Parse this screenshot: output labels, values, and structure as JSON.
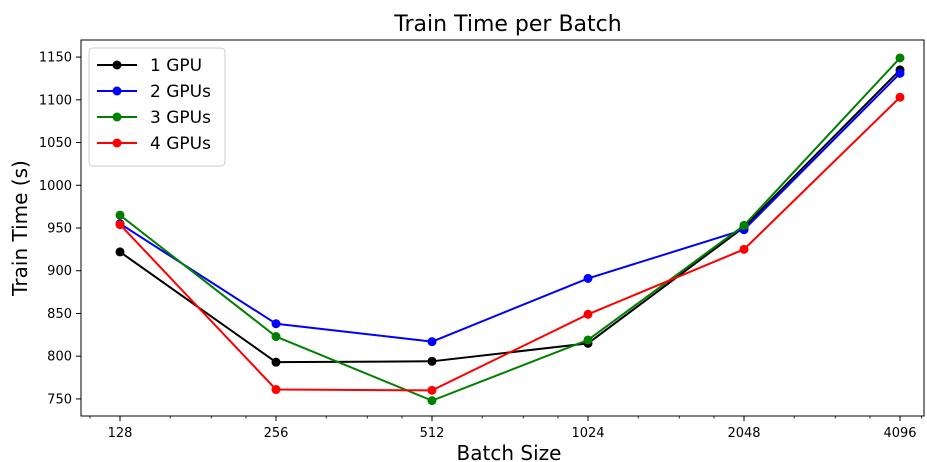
{
  "chart_data": {
    "type": "line",
    "title": "Train Time per Batch",
    "xlabel": "Batch Size",
    "ylabel": "Train Time (s)",
    "x_scale": "log2",
    "categories": [
      "128",
      "256",
      "512",
      "1024",
      "2048",
      "4096"
    ],
    "x": [
      128,
      256,
      512,
      1024,
      2048,
      4096
    ],
    "ylim": [
      730,
      1170
    ],
    "yticks": [
      750,
      800,
      850,
      900,
      950,
      1000,
      1050,
      1100,
      1150
    ],
    "grid": false,
    "legend_position": "top-left",
    "series": [
      {
        "name": "1 GPU",
        "color": "#000000",
        "values": [
          922,
          793,
          794,
          815,
          951,
          1135
        ]
      },
      {
        "name": "2 GPUs",
        "color": "#0000ff",
        "values": [
          955,
          838,
          817,
          891,
          948,
          1131
        ]
      },
      {
        "name": "3 GPUs",
        "color": "#008000",
        "values": [
          965,
          823,
          748,
          819,
          953,
          1149
        ]
      },
      {
        "name": "4 GPUs",
        "color": "#ff0000",
        "values": [
          954,
          761,
          760,
          849,
          925,
          1103
        ]
      }
    ]
  }
}
